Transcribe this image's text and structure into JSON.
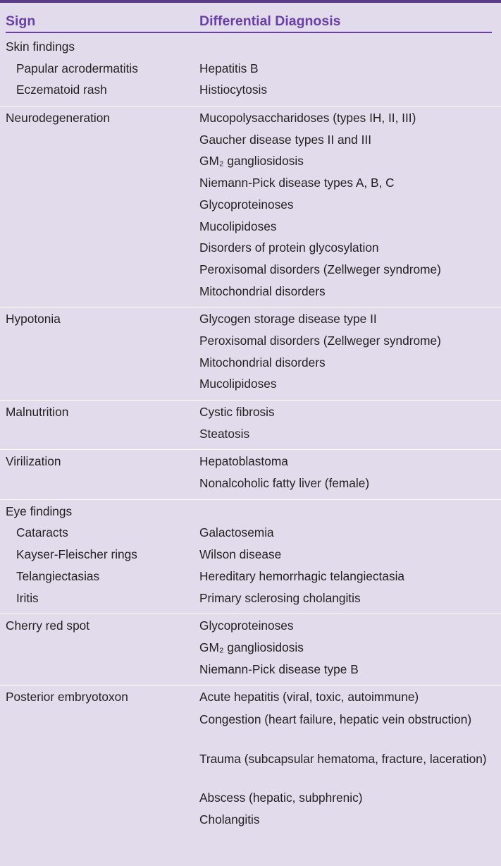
{
  "table": {
    "headers": {
      "sign": "Sign",
      "differential": "Differential Diagnosis"
    },
    "rows": [
      {
        "lines": [
          {
            "sign": "Skin findings",
            "dx": ""
          },
          {
            "sign": "Papular acrodermatitis",
            "dx": "Hepatitis B"
          },
          {
            "sign": "Eczematoid rash",
            "dx": "Histiocytosis"
          }
        ]
      },
      {
        "lines": [
          {
            "sign": "Neurodegeneration",
            "dx": "Mucopolysaccharidoses (types IH, II, III)"
          },
          {
            "sign": "",
            "dx": "Gaucher disease types II and III"
          },
          {
            "sign": "",
            "dx": "GM₂ gangliosidosis"
          },
          {
            "sign": "",
            "dx": "Niemann-Pick disease types A, B, C"
          },
          {
            "sign": "",
            "dx": "Glycoproteinoses"
          },
          {
            "sign": "",
            "dx": "Mucolipidoses"
          },
          {
            "sign": "",
            "dx": "Disorders of protein glycosylation"
          },
          {
            "sign": "",
            "dx": "Peroxisomal disorders (Zellweger syndrome)"
          },
          {
            "sign": "",
            "dx": "Mitochondrial disorders"
          }
        ]
      },
      {
        "lines": [
          {
            "sign": "Hypotonia",
            "dx": "Glycogen storage disease type II"
          },
          {
            "sign": "",
            "dx": "Peroxisomal disorders (Zellweger syndrome)"
          },
          {
            "sign": "",
            "dx": "Mitochondrial disorders"
          },
          {
            "sign": "",
            "dx": "Mucolipidoses"
          }
        ]
      },
      {
        "lines": [
          {
            "sign": "Malnutrition",
            "dx": "Cystic fibrosis"
          },
          {
            "sign": "",
            "dx": "Steatosis"
          }
        ]
      },
      {
        "lines": [
          {
            "sign": "Virilization",
            "dx": "Hepatoblastoma"
          },
          {
            "sign": "",
            "dx": "Nonalcoholic fatty liver (female)"
          }
        ]
      },
      {
        "lines": [
          {
            "sign": "Eye findings",
            "dx": ""
          },
          {
            "sign": "Cataracts",
            "dx": "Galactosemia"
          },
          {
            "sign": "Kayser-Fleischer rings",
            "dx": "Wilson disease"
          },
          {
            "sign": "Telangiectasias",
            "dx": "Hereditary hemorrhagic telangiectasia"
          },
          {
            "sign": "Iritis",
            "dx": "Primary sclerosing cholangitis"
          }
        ]
      },
      {
        "lines": [
          {
            "sign": "Cherry red spot",
            "dx": "Glycoproteinoses"
          },
          {
            "sign": "",
            "dx": "GM₂ gangliosidosis"
          },
          {
            "sign": "",
            "dx": "Niemann-Pick disease type B"
          }
        ]
      },
      {
        "lines": [
          {
            "sign": "Posterior embryotoxon",
            "dx": "Acute hepatitis (viral, toxic, autoimmune)"
          },
          {
            "sign": "",
            "dx": "Congestion (heart failure, hepatic vein obstruction)"
          },
          {
            "sign": "",
            "dx": "Trauma (subcapsular hematoma, fracture, laceration)"
          },
          {
            "sign": "",
            "dx": "Abscess (hepatic, subphrenic)"
          },
          {
            "sign": "",
            "dx": "Cholangitis"
          }
        ]
      }
    ]
  }
}
